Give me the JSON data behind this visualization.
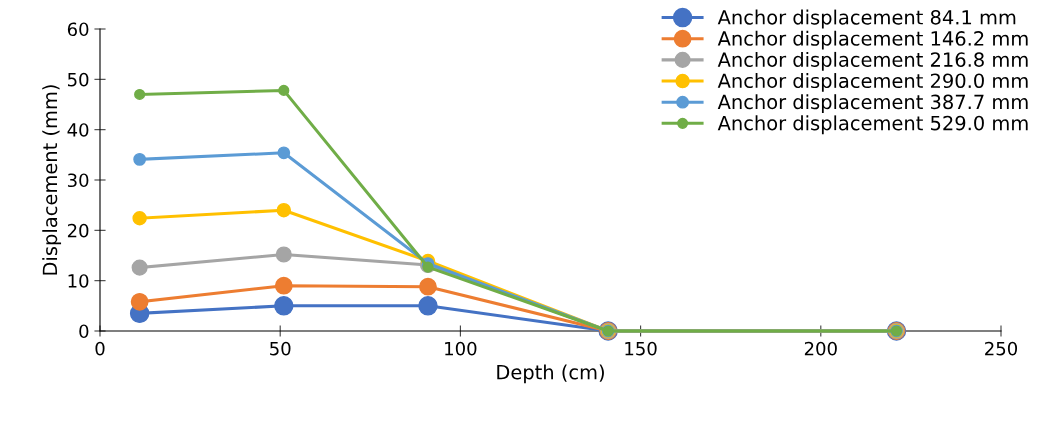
{
  "chart_data": {
    "type": "line",
    "xlabel": "Depth (cm)",
    "ylabel": "Displacement (mm)",
    "x": [
      11,
      51,
      91,
      141,
      221
    ],
    "series": [
      {
        "name": "Anchor displacement 84.1 mm",
        "color": "#4472c4",
        "values": [
          3.5,
          5.0,
          5.0,
          0,
          0
        ]
      },
      {
        "name": "Anchor displacement 146.2 mm",
        "color": "#ed7d31",
        "values": [
          5.8,
          9.0,
          8.8,
          0,
          0
        ]
      },
      {
        "name": "Anchor displacement 216.8 mm",
        "color": "#a5a5a5",
        "values": [
          12.6,
          15.2,
          13.1,
          0,
          0
        ]
      },
      {
        "name": "Anchor displacement 290.0 mm",
        "color": "#ffc000",
        "values": [
          22.4,
          24.0,
          13.9,
          0,
          0
        ]
      },
      {
        "name": "Anchor displacement 387.7 mm",
        "color": "#5b9bd5",
        "values": [
          34.1,
          35.4,
          13.4,
          0,
          0
        ]
      },
      {
        "name": "Anchor displacement 529.0 mm",
        "color": "#70ad47",
        "values": [
          47.0,
          47.8,
          12.7,
          0,
          0
        ]
      }
    ],
    "xlim": [
      0,
      250
    ],
    "xticks": [
      0,
      50,
      100,
      150,
      200,
      250
    ],
    "ylim": [
      0,
      60
    ],
    "yticks": [
      0,
      10,
      20,
      30,
      40,
      50,
      60
    ],
    "grid": false,
    "legend": "top right",
    "marker": "circle",
    "line_style": "solid"
  }
}
